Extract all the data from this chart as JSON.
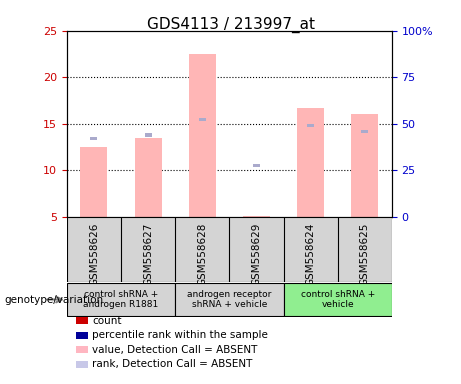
{
  "title": "GDS4113 / 213997_at",
  "samples": [
    "GSM558626",
    "GSM558627",
    "GSM558628",
    "GSM558629",
    "GSM558624",
    "GSM558625"
  ],
  "pink_values": [
    12.5,
    13.5,
    22.5,
    5.1,
    16.7,
    16.1
  ],
  "blue_rank_values": [
    13.4,
    13.8,
    15.5,
    10.5,
    14.8,
    14.2
  ],
  "left_ylim": [
    5,
    25
  ],
  "left_yticks": [
    5,
    10,
    15,
    20,
    25
  ],
  "right_ylim": [
    0,
    100
  ],
  "right_yticks": [
    0,
    25,
    50,
    75,
    100
  ],
  "right_yticklabels": [
    "0",
    "25",
    "50",
    "75",
    "100%"
  ],
  "groups": [
    {
      "label": "control shRNA +\nandrogen R1881",
      "start": 0,
      "end": 2,
      "color": "#d4d4d4"
    },
    {
      "label": "androgen receptor\nshRNA + vehicle",
      "start": 2,
      "end": 4,
      "color": "#d4d4d4"
    },
    {
      "label": "control shRNA +\nvehicle",
      "start": 4,
      "end": 6,
      "color": "#90ee90"
    }
  ],
  "legend_items": [
    {
      "color": "#cc0000",
      "label": "count"
    },
    {
      "color": "#000099",
      "label": "percentile rank within the sample"
    },
    {
      "color": "#ffb6c1",
      "label": "value, Detection Call = ABSENT"
    },
    {
      "color": "#c8c8e8",
      "label": "rank, Detection Call = ABSENT"
    }
  ],
  "bar_color": "#ffb6b6",
  "rank_color": "#aaaacc",
  "left_tick_color": "#cc0000",
  "right_tick_color": "#0000cc",
  "bar_bottom": 5.0,
  "chart_bg": "#ffffff",
  "label_bg": "#d4d4d4"
}
